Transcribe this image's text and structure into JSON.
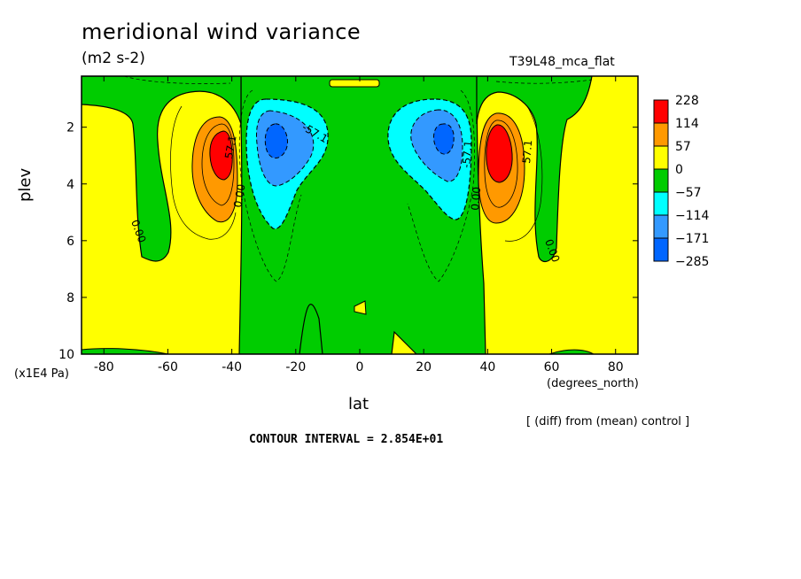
{
  "chart_data": {
    "type": "contour",
    "title": "meridional wind variance",
    "units": "(m2 s-2)",
    "run_label": "T39L48_mca_flat",
    "xlabel": "lat",
    "x_units": "(degrees_north)",
    "ylabel": "plev",
    "y_scale_note": "(x1E4 Pa)",
    "note": "[ (diff) from (mean) control ]",
    "contour_interval_text": "CONTOUR INTERVAL = 2.854E+01",
    "xlim": [
      -87,
      87
    ],
    "ylim": [
      10,
      0.2
    ],
    "x_ticks": [
      -80,
      -60,
      -40,
      -20,
      0,
      20,
      40,
      60,
      80
    ],
    "y_ticks": [
      2,
      4,
      6,
      8,
      10
    ],
    "legend": {
      "levels": [
        "228",
        "114",
        "57",
        "0",
        "-57",
        "-114",
        "-171",
        "-285"
      ],
      "colors": [
        "#ff0000",
        "#ff9900",
        "#ffff00",
        "#00cc00",
        "#00ffff",
        "#3399ff",
        "#0066ff"
      ]
    },
    "colors": {
      "positive_low": "#ffff00",
      "negative_low": "#00cc00",
      "c57": "#ff9900",
      "c114": "#ff9900",
      "c171": "#ff0000",
      "cneg57": "#00ffff",
      "cneg114": "#3399ff",
      "cneg171": "#0066ff"
    },
    "features": [
      {
        "name": "SH positive maximum",
        "lat": -44,
        "plev": 2.7,
        "peak": 228
      },
      {
        "name": "SH negative minimum",
        "lat": -27,
        "plev": 2.5,
        "peak": -200
      },
      {
        "name": "NH negative minimum",
        "lat": 27,
        "plev": 2.5,
        "peak": -200
      },
      {
        "name": "NH positive maximum",
        "lat": 44,
        "plev": 2.8,
        "peak": 228
      }
    ],
    "contour_labels": [
      "57.1",
      "-57.1",
      "0.00",
      "0.00",
      "0.00",
      "0.00",
      "-57.1",
      "57.1"
    ]
  }
}
